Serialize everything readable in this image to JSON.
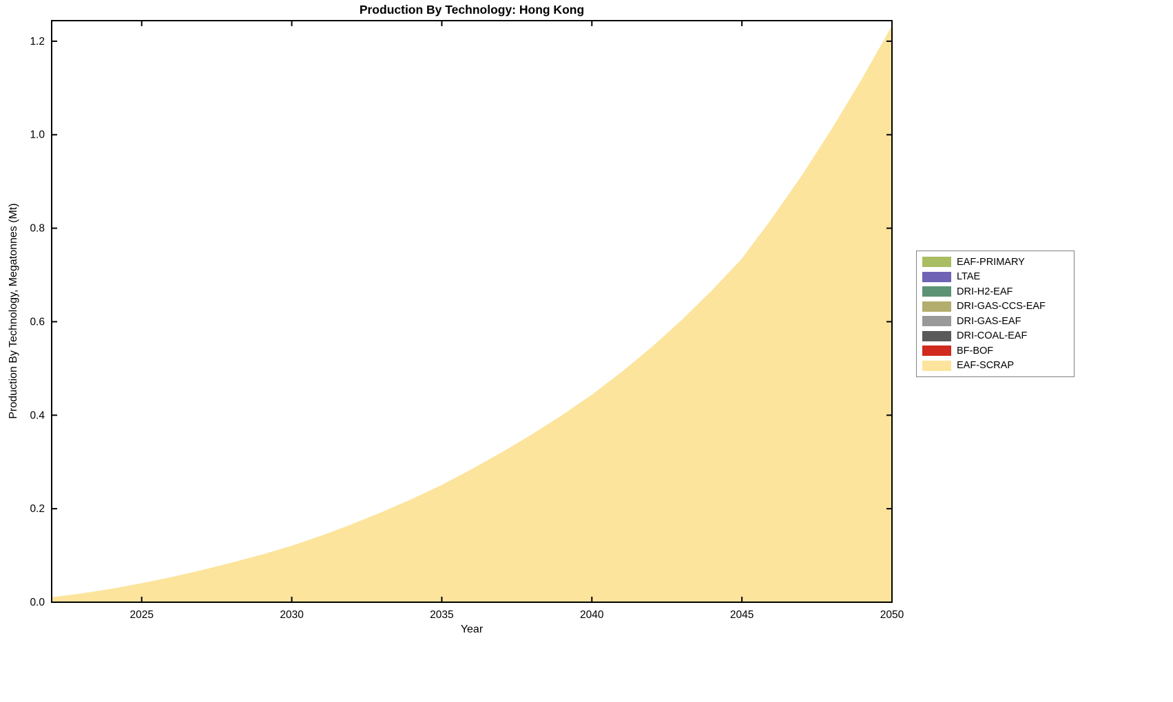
{
  "figure": {
    "title": "Production By Technology: Hong Kong",
    "xlabel": "Year",
    "ylabel": "Production By Technology, Megatonnes (Mt)"
  },
  "legend": {
    "position": "right-outside",
    "items": [
      {
        "label": "EAF-PRIMARY",
        "color": "#a9bd63"
      },
      {
        "label": "LTAE",
        "color": "#6e63b4"
      },
      {
        "label": "DRI-H2-EAF",
        "color": "#5b9374"
      },
      {
        "label": "DRI-GAS-CCS-EAF",
        "color": "#b3ad6e"
      },
      {
        "label": "DRI-GAS-EAF",
        "color": "#999999"
      },
      {
        "label": "DRI-COAL-EAF",
        "color": "#5a5a5a"
      },
      {
        "label": "BF-BOF",
        "color": "#d12a1e"
      },
      {
        "label": "EAF-SCRAP",
        "color": "#fce49c"
      }
    ]
  },
  "chart_data": {
    "type": "area",
    "title": "Production By Technology: Hong Kong",
    "xlabel": "Year",
    "ylabel": "Production By Technology, Megatonnes (Mt)",
    "xlim": [
      2022,
      2050
    ],
    "ylim": [
      0,
      1.244
    ],
    "xticks": [
      2025,
      2030,
      2035,
      2040,
      2045,
      2050
    ],
    "yticks": [
      0.0,
      0.2,
      0.4,
      0.6,
      0.8,
      1.0,
      1.2
    ],
    "grid": false,
    "legend_position": "right-outside",
    "x": [
      2022,
      2023,
      2024,
      2025,
      2026,
      2027,
      2028,
      2029,
      2030,
      2031,
      2032,
      2033,
      2034,
      2035,
      2036,
      2037,
      2038,
      2039,
      2040,
      2041,
      2042,
      2043,
      2044,
      2045,
      2046,
      2047,
      2048,
      2049,
      2050
    ],
    "series": [
      {
        "name": "EAF-SCRAP",
        "color": "#fce49c",
        "values": [
          0.01,
          0.018,
          0.028,
          0.04,
          0.053,
          0.068,
          0.084,
          0.101,
          0.12,
          0.142,
          0.166,
          0.192,
          0.22,
          0.25,
          0.284,
          0.32,
          0.358,
          0.399,
          0.443,
          0.492,
          0.545,
          0.603,
          0.666,
          0.734,
          0.82,
          0.912,
          1.012,
          1.118,
          1.232
        ]
      },
      {
        "name": "BF-BOF",
        "color": "#d12a1e",
        "values": 0
      },
      {
        "name": "DRI-COAL-EAF",
        "color": "#5a5a5a",
        "values": 0
      },
      {
        "name": "DRI-GAS-EAF",
        "color": "#999999",
        "values": 0
      },
      {
        "name": "DRI-GAS-CCS-EAF",
        "color": "#b3ad6e",
        "values": 0
      },
      {
        "name": "DRI-H2-EAF",
        "color": "#5b9374",
        "values": 0
      },
      {
        "name": "LTAE",
        "color": "#6e63b4",
        "values": 0
      },
      {
        "name": "EAF-PRIMARY",
        "color": "#a9bd63",
        "values": 0
      }
    ]
  }
}
